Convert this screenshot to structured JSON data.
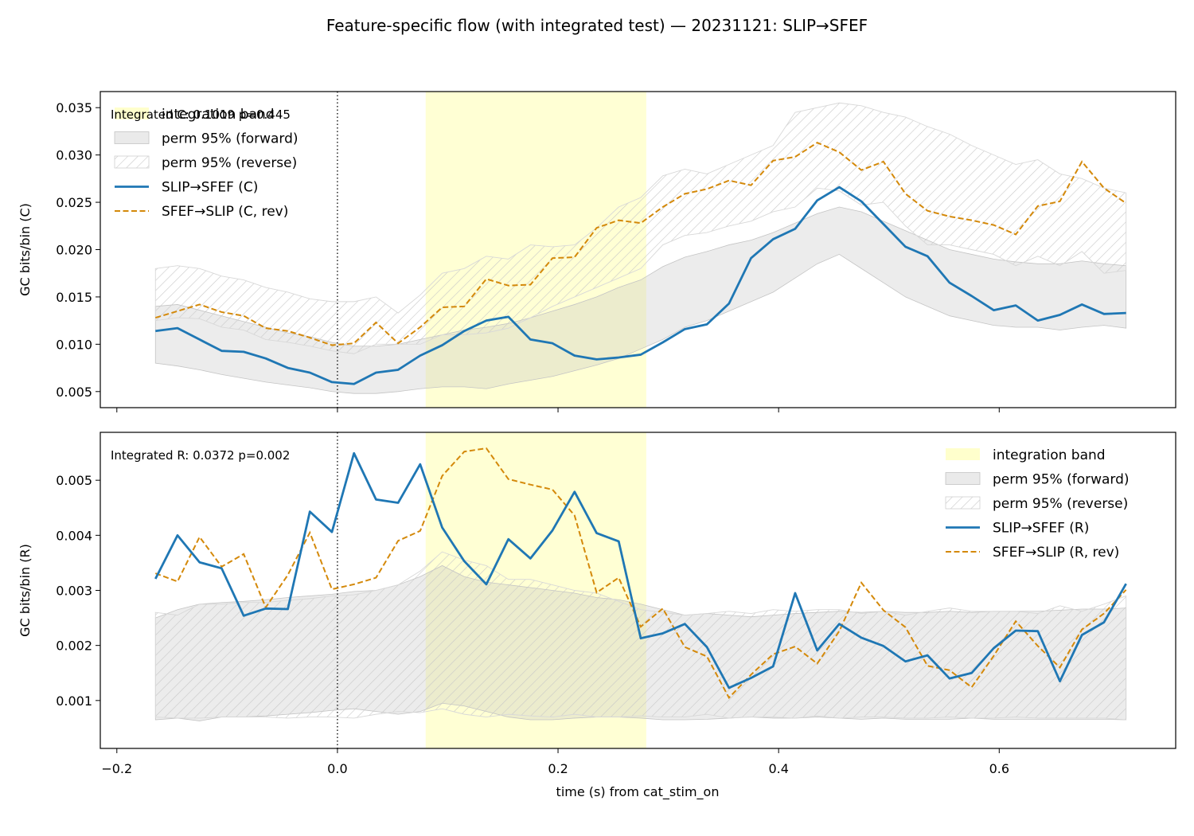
{
  "chart_data": {
    "title": "Feature-specific flow (with integrated test) — 20231121: SLIP→SFEF",
    "shared_x": {
      "label": "time (s) from cat_stim_on",
      "lim": [
        -0.215,
        0.76
      ],
      "ticks": [
        -0.2,
        0.0,
        0.2,
        0.4,
        0.6
      ],
      "tick_labels": [
        "−0.2",
        "0.0",
        "0.2",
        "0.4",
        "0.6"
      ],
      "x": [
        -0.165,
        -0.145,
        -0.125,
        -0.105,
        -0.085,
        -0.065,
        -0.045,
        -0.025,
        -0.005,
        0.015,
        0.035,
        0.055,
        0.075,
        0.095,
        0.115,
        0.135,
        0.155,
        0.175,
        0.195,
        0.215,
        0.235,
        0.255,
        0.275,
        0.295,
        0.315,
        0.335,
        0.355,
        0.375,
        0.395,
        0.415,
        0.435,
        0.455,
        0.475,
        0.495,
        0.515,
        0.535,
        0.555,
        0.575,
        0.595,
        0.615,
        0.635,
        0.655,
        0.675,
        0.695,
        0.715
      ],
      "event_line": 0.0
    },
    "colors": {
      "forward_line": "#1f77b4",
      "reverse_line": "#d4890a",
      "integration_band": "#ffffcc",
      "perm_forward": "#bbbbbb",
      "perm_reverse_hatch": "#cccccc"
    },
    "integration_band": [
      0.08,
      0.28
    ],
    "panels": [
      {
        "id": "C",
        "ylabel": "GC bits/bin (C)",
        "ylim": [
          0.0033,
          0.0367
        ],
        "yticks": [
          0.005,
          0.01,
          0.015,
          0.02,
          0.025,
          0.03,
          0.035
        ],
        "ytick_labels": [
          "0.005",
          "0.010",
          "0.015",
          "0.020",
          "0.025",
          "0.030",
          "0.035"
        ],
        "annotation": "Integrated C: 0.1019  p=0.445",
        "legend_position": "upper-left",
        "legend": [
          {
            "kind": "band",
            "label": "integration band"
          },
          {
            "kind": "perm-forward",
            "label": "perm 95% (forward)"
          },
          {
            "kind": "perm-reverse",
            "label": "perm 95% (reverse)"
          },
          {
            "kind": "forward-line",
            "label": "SLIP→SFEF (C)"
          },
          {
            "kind": "reverse-line",
            "label": "SFEF→SLIP (C, rev)"
          }
        ],
        "perm_forward": {
          "lower": [
            0.008,
            0.0077,
            0.0073,
            0.0068,
            0.0064,
            0.006,
            0.0057,
            0.0054,
            0.005,
            0.0048,
            0.0048,
            0.005,
            0.0053,
            0.0055,
            0.0055,
            0.0053,
            0.0058,
            0.0062,
            0.0066,
            0.0072,
            0.0078,
            0.0085,
            0.0095,
            0.0105,
            0.0118,
            0.0125,
            0.0135,
            0.0145,
            0.0155,
            0.017,
            0.0185,
            0.0195,
            0.018,
            0.0165,
            0.015,
            0.014,
            0.013,
            0.0125,
            0.012,
            0.0118,
            0.0118,
            0.0115,
            0.0118,
            0.012,
            0.0117
          ],
          "upper": [
            0.014,
            0.0142,
            0.0136,
            0.013,
            0.0124,
            0.0118,
            0.0112,
            0.0108,
            0.0102,
            0.0098,
            0.0098,
            0.01,
            0.0105,
            0.011,
            0.0115,
            0.0118,
            0.0122,
            0.0128,
            0.0135,
            0.0142,
            0.015,
            0.016,
            0.0168,
            0.0182,
            0.0192,
            0.0198,
            0.0205,
            0.021,
            0.0218,
            0.0228,
            0.0238,
            0.0245,
            0.024,
            0.023,
            0.022,
            0.021,
            0.02,
            0.0195,
            0.019,
            0.0187,
            0.0185,
            0.0185,
            0.0188,
            0.0185,
            0.0183
          ]
        },
        "perm_reverse": {
          "lower": [
            0.0125,
            0.0128,
            0.0127,
            0.0118,
            0.0115,
            0.0105,
            0.0102,
            0.0098,
            0.0093,
            0.009,
            0.01,
            0.01,
            0.01,
            0.011,
            0.011,
            0.0112,
            0.0117,
            0.0128,
            0.014,
            0.015,
            0.016,
            0.017,
            0.018,
            0.0205,
            0.0215,
            0.0218,
            0.0225,
            0.023,
            0.024,
            0.0245,
            0.0265,
            0.0262,
            0.0247,
            0.025,
            0.0225,
            0.0205,
            0.0205,
            0.02,
            0.0195,
            0.0183,
            0.0193,
            0.0183,
            0.0198,
            0.0175,
            0.0178
          ],
          "upper": [
            0.018,
            0.0183,
            0.018,
            0.0172,
            0.0168,
            0.016,
            0.0155,
            0.0148,
            0.0145,
            0.0145,
            0.015,
            0.0133,
            0.0152,
            0.0175,
            0.018,
            0.0193,
            0.019,
            0.0205,
            0.0203,
            0.0205,
            0.0223,
            0.0245,
            0.0255,
            0.0278,
            0.0285,
            0.028,
            0.029,
            0.03,
            0.031,
            0.0345,
            0.035,
            0.0355,
            0.0352,
            0.0345,
            0.034,
            0.033,
            0.0322,
            0.031,
            0.03,
            0.029,
            0.0295,
            0.028,
            0.0275,
            0.0265,
            0.026
          ]
        },
        "forward_values": [
          0.0114,
          0.0117,
          0.0105,
          0.0093,
          0.0092,
          0.0085,
          0.0075,
          0.007,
          0.006,
          0.0058,
          0.007,
          0.0073,
          0.0088,
          0.0099,
          0.0114,
          0.0125,
          0.0129,
          0.0105,
          0.0101,
          0.0088,
          0.0084,
          0.0086,
          0.0089,
          0.0102,
          0.0116,
          0.0121,
          0.0143,
          0.0191,
          0.0211,
          0.0222,
          0.0252,
          0.0266,
          0.0251,
          0.0227,
          0.0203,
          0.0193,
          0.0165,
          0.0151,
          0.0136,
          0.0141,
          0.0125,
          0.0131,
          0.0142,
          0.0132,
          0.0133
        ],
        "reverse_values": [
          0.0128,
          0.0135,
          0.0142,
          0.0134,
          0.013,
          0.0117,
          0.0114,
          0.0107,
          0.0099,
          0.0101,
          0.0123,
          0.0101,
          0.0118,
          0.0139,
          0.014,
          0.0169,
          0.0162,
          0.0163,
          0.0191,
          0.0192,
          0.0223,
          0.0231,
          0.0228,
          0.0245,
          0.0259,
          0.0264,
          0.0273,
          0.0268,
          0.0294,
          0.0298,
          0.0313,
          0.0303,
          0.0284,
          0.0293,
          0.0259,
          0.0241,
          0.0235,
          0.0231,
          0.0226,
          0.0216,
          0.0246,
          0.0251,
          0.0293,
          0.0265,
          0.0249
        ]
      },
      {
        "id": "R",
        "ylabel": "GC bits/bin (R)",
        "ylim": [
          0.00013,
          0.00587
        ],
        "yticks": [
          0.001,
          0.002,
          0.003,
          0.004,
          0.005
        ],
        "ytick_labels": [
          "0.001",
          "0.002",
          "0.003",
          "0.004",
          "0.005"
        ],
        "annotation": "Integrated R: 0.0372  p=0.002",
        "legend_position": "upper-right",
        "legend": [
          {
            "kind": "band",
            "label": "integration band"
          },
          {
            "kind": "perm-forward",
            "label": "perm 95% (forward)"
          },
          {
            "kind": "perm-reverse",
            "label": "perm 95% (reverse)"
          },
          {
            "kind": "forward-line",
            "label": "SLIP→SFEF (R)"
          },
          {
            "kind": "reverse-line",
            "label": "SFEF→SLIP (R, rev)"
          }
        ],
        "perm_forward": {
          "lower": [
            0.00065,
            0.00068,
            0.00063,
            0.0007,
            0.0007,
            0.00072,
            0.00075,
            0.00078,
            0.00082,
            0.00085,
            0.0008,
            0.00075,
            0.0008,
            0.00095,
            0.0009,
            0.0008,
            0.0007,
            0.00065,
            0.00065,
            0.00068,
            0.0007,
            0.0007,
            0.00068,
            0.00065,
            0.00065,
            0.00066,
            0.00068,
            0.0007,
            0.00068,
            0.00068,
            0.0007,
            0.00068,
            0.00066,
            0.00068,
            0.00066,
            0.00066,
            0.00066,
            0.00068,
            0.00066,
            0.00066,
            0.00066,
            0.00066,
            0.00066,
            0.00066,
            0.00065
          ],
          "upper": [
            0.0025,
            0.00265,
            0.00275,
            0.00278,
            0.0028,
            0.00283,
            0.00287,
            0.0029,
            0.00293,
            0.00298,
            0.003,
            0.0031,
            0.00325,
            0.00345,
            0.00325,
            0.00315,
            0.0031,
            0.00305,
            0.003,
            0.00295,
            0.00287,
            0.00283,
            0.00275,
            0.00265,
            0.00255,
            0.00258,
            0.00255,
            0.00252,
            0.00255,
            0.00258,
            0.0026,
            0.00262,
            0.0026,
            0.00262,
            0.0026,
            0.0026,
            0.00262,
            0.0026,
            0.00262,
            0.00262,
            0.00262,
            0.00264,
            0.00266,
            0.00266,
            0.00268
          ]
        },
        "perm_reverse": {
          "lower": [
            0.0007,
            0.00068,
            0.00068,
            0.0007,
            0.0007,
            0.0007,
            0.00068,
            0.0007,
            0.0007,
            0.00068,
            0.00075,
            0.0008,
            0.00078,
            0.00085,
            0.00075,
            0.0007,
            0.00075,
            0.00072,
            0.0007,
            0.00075,
            0.0007,
            0.0007,
            0.00072,
            0.0007,
            0.0007,
            0.00075,
            0.00068,
            0.0007,
            0.0007,
            0.00068,
            0.00072,
            0.00068,
            0.0007,
            0.0007,
            0.00068,
            0.00068,
            0.0007,
            0.00068,
            0.00068,
            0.0007,
            0.00068,
            0.00068,
            0.00068,
            0.00068,
            0.00065
          ],
          "upper": [
            0.0026,
            0.00255,
            0.00275,
            0.00275,
            0.00278,
            0.00278,
            0.00282,
            0.00285,
            0.0029,
            0.00292,
            0.003,
            0.0031,
            0.00335,
            0.0037,
            0.00355,
            0.00345,
            0.0032,
            0.0032,
            0.0031,
            0.003,
            0.00295,
            0.0028,
            0.00265,
            0.0026,
            0.00255,
            0.00258,
            0.00262,
            0.00258,
            0.00265,
            0.00262,
            0.00265,
            0.00265,
            0.00258,
            0.00262,
            0.00255,
            0.00262,
            0.00268,
            0.00262,
            0.00262,
            0.00262,
            0.00258,
            0.00272,
            0.00262,
            0.00275,
            0.0029
          ]
        },
        "forward_values": [
          0.00321,
          0.004,
          0.00351,
          0.0034,
          0.00254,
          0.00267,
          0.00266,
          0.00443,
          0.00406,
          0.00549,
          0.00465,
          0.00459,
          0.00529,
          0.00414,
          0.00353,
          0.00311,
          0.00393,
          0.00358,
          0.00409,
          0.00479,
          0.00404,
          0.00389,
          0.00213,
          0.00222,
          0.00239,
          0.00197,
          0.00123,
          0.00141,
          0.00162,
          0.00295,
          0.00191,
          0.00239,
          0.00214,
          0.00199,
          0.00171,
          0.00182,
          0.0014,
          0.0015,
          0.00195,
          0.00227,
          0.00226,
          0.00135,
          0.00219,
          0.00242,
          0.00312
        ],
        "reverse_values": [
          0.00331,
          0.00316,
          0.00397,
          0.00343,
          0.00366,
          0.00269,
          0.00328,
          0.00405,
          0.00302,
          0.00311,
          0.00323,
          0.0039,
          0.00408,
          0.00508,
          0.00552,
          0.00558,
          0.00502,
          0.00492,
          0.00483,
          0.00436,
          0.00296,
          0.00323,
          0.00234,
          0.00267,
          0.00197,
          0.0018,
          0.00105,
          0.00147,
          0.00184,
          0.00198,
          0.00167,
          0.00226,
          0.00314,
          0.00264,
          0.00233,
          0.00163,
          0.00155,
          0.00124,
          0.00181,
          0.00244,
          0.00199,
          0.0016,
          0.00229,
          0.00258,
          0.00301
        ]
      }
    ]
  }
}
